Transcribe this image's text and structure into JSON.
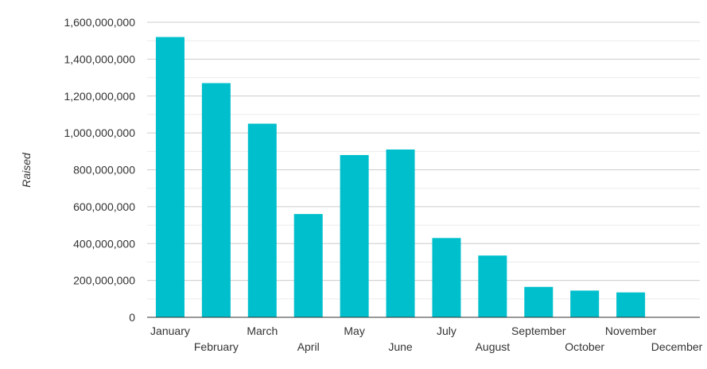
{
  "chart_data": {
    "type": "bar",
    "title": "",
    "xlabel": "",
    "ylabel": "Raised",
    "ylim": [
      0,
      1600000000
    ],
    "yticks": [
      0,
      200000000,
      400000000,
      600000000,
      800000000,
      1000000000,
      1200000000,
      1400000000,
      1600000000
    ],
    "ytick_labels": [
      "0",
      "200,000,000",
      "400,000,000",
      "600,000,000",
      "800,000,000",
      "1,000,000,000",
      "1,200,000,000",
      "1,400,000,000",
      "1,600,000,000"
    ],
    "categories": [
      "January",
      "February",
      "March",
      "April",
      "May",
      "June",
      "July",
      "August",
      "September",
      "October",
      "November",
      "December"
    ],
    "values": [
      1520000000,
      1270000000,
      1050000000,
      560000000,
      880000000,
      910000000,
      430000000,
      335000000,
      165000000,
      145000000,
      135000000,
      0
    ],
    "bar_color": "#00BFCC",
    "grid": true,
    "minor_grid": true,
    "legend": "none"
  }
}
